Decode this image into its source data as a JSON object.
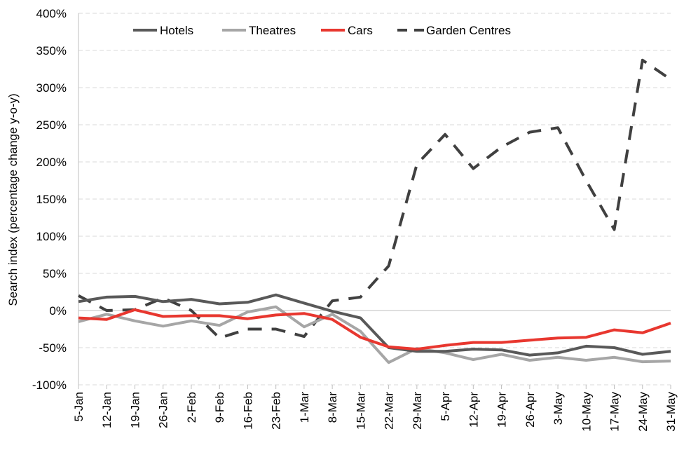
{
  "chart_data": {
    "type": "line",
    "title": "",
    "xlabel": "",
    "ylabel": "Search index (percentage change y-o-y)",
    "ylim": [
      -100,
      400
    ],
    "yticks": [
      -100,
      -50,
      0,
      50,
      100,
      150,
      200,
      250,
      300,
      350,
      400
    ],
    "ytick_labels": [
      "-100%",
      "-50%",
      "0%",
      "50%",
      "100%",
      "150%",
      "200%",
      "250%",
      "300%",
      "350%",
      "400%"
    ],
    "grid": "horizontal dashed",
    "legend_position": "top",
    "categories": [
      "5-Jan",
      "12-Jan",
      "19-Jan",
      "26-Jan",
      "2-Feb",
      "9-Feb",
      "16-Feb",
      "23-Feb",
      "1-Mar",
      "8-Mar",
      "15-Mar",
      "22-Mar",
      "29-Mar",
      "5-Apr",
      "12-Apr",
      "19-Apr",
      "26-Apr",
      "3-May",
      "10-May",
      "17-May",
      "24-May",
      "31-May"
    ],
    "series": [
      {
        "name": "Hotels",
        "color": "#595959",
        "dash": "solid",
        "values": [
          12,
          18,
          19,
          12,
          15,
          9,
          11,
          21,
          10,
          -1,
          -10,
          -50,
          -55,
          -55,
          -52,
          -53,
          -60,
          -57,
          -48,
          -50,
          -59,
          -55
        ]
      },
      {
        "name": "Theatres",
        "color": "#a6a6a6",
        "dash": "solid",
        "values": [
          -15,
          -5,
          -14,
          -21,
          -14,
          -20,
          -2,
          5,
          -22,
          -5,
          -28,
          -70,
          -51,
          -57,
          -66,
          -59,
          -67,
          -63,
          -67,
          -63,
          -69,
          -68
        ]
      },
      {
        "name": "Cars",
        "color": "#e8372f",
        "dash": "solid",
        "values": [
          -10,
          -12,
          1,
          -8,
          -7,
          -7,
          -11,
          -6,
          -4,
          -12,
          -36,
          -49,
          -52,
          -47,
          -43,
          -43,
          -40,
          -37,
          -36,
          -26,
          -30,
          -17
        ]
      },
      {
        "name": "Garden Centres",
        "color": "#404040",
        "dash": "dashed",
        "values": [
          20,
          0,
          1,
          17,
          0,
          -37,
          -25,
          -25,
          -35,
          13,
          18,
          60,
          197,
          237,
          191,
          220,
          240,
          246,
          175,
          109,
          337,
          311
        ]
      }
    ]
  }
}
